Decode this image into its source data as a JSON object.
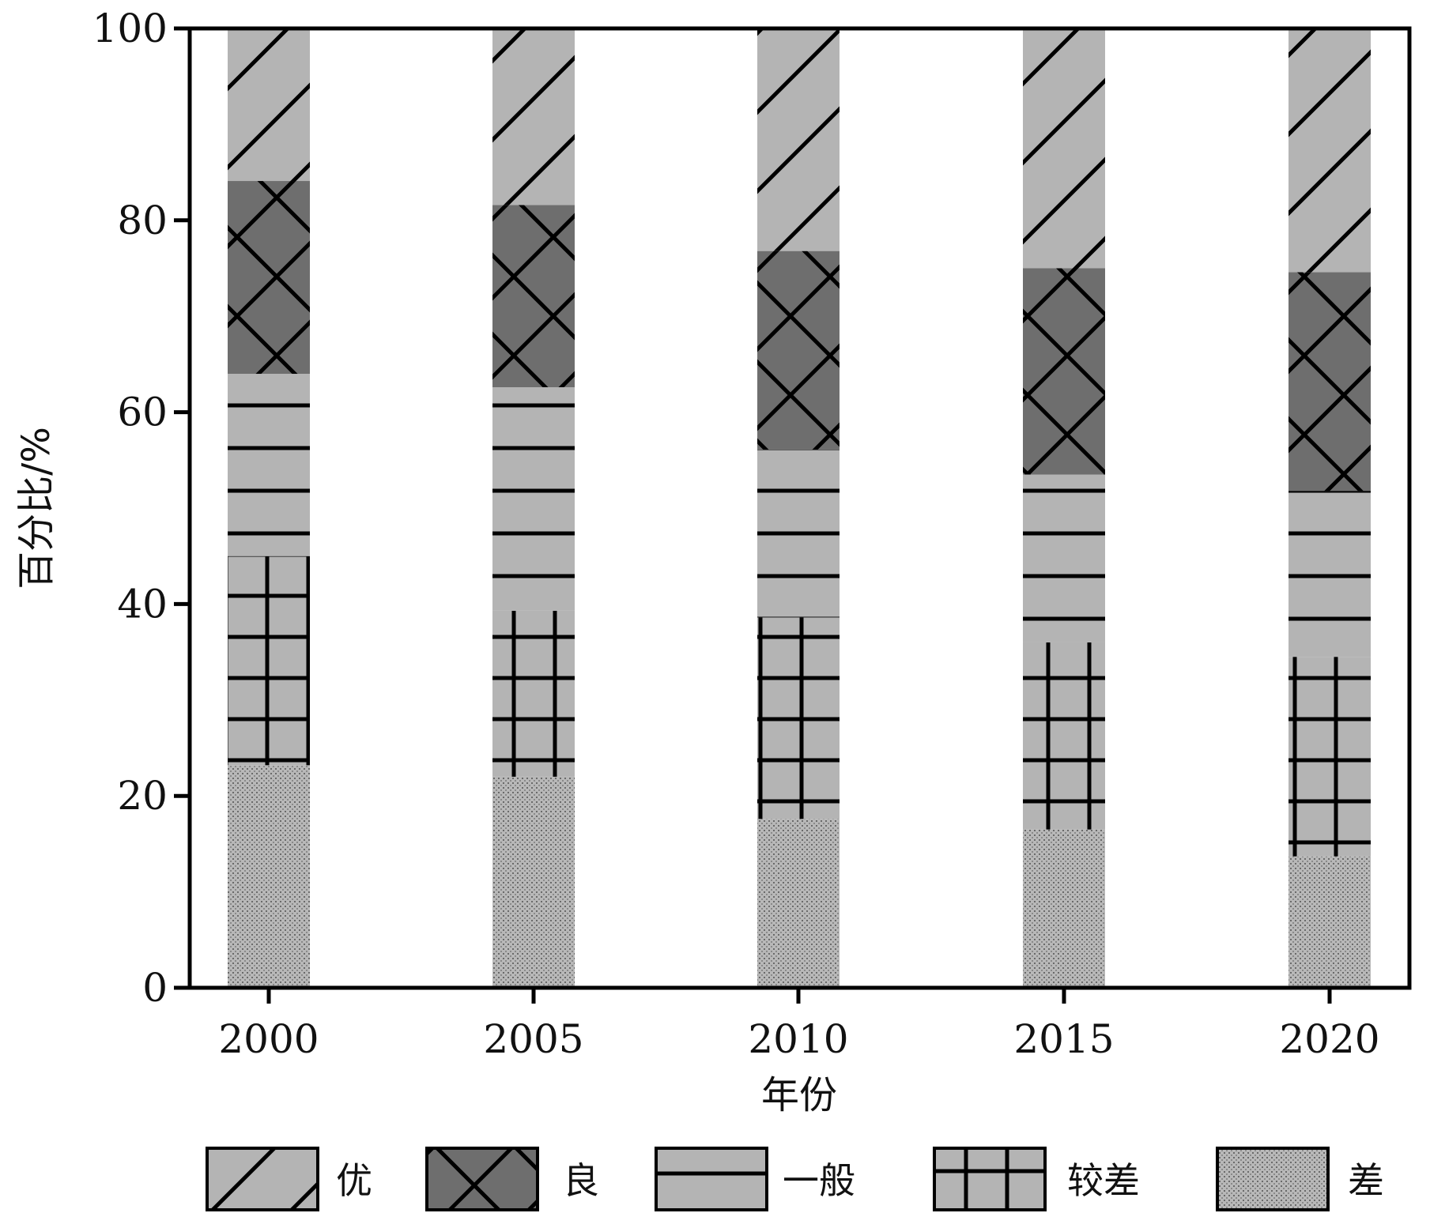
{
  "chart_data": {
    "type": "bar",
    "stacked": true,
    "categories": [
      "2000",
      "2005",
      "2010",
      "2015",
      "2020"
    ],
    "series": [
      {
        "name": "差",
        "values": [
          23.2,
          22.0,
          17.6,
          16.5,
          13.7
        ],
        "color": "#a9a9a9",
        "pattern": "dots"
      },
      {
        "name": "较差",
        "values": [
          21.8,
          17.3,
          21.0,
          19.5,
          20.8
        ],
        "color": "#b4b4b4",
        "pattern": "grid"
      },
      {
        "name": "一般",
        "values": [
          19.0,
          23.3,
          17.5,
          17.5,
          17.3
        ],
        "color": "#b4b4b4",
        "pattern": "horizontal"
      },
      {
        "name": "良",
        "values": [
          20.1,
          19.0,
          20.7,
          21.5,
          22.8
        ],
        "color": "#6e6e6e",
        "pattern": "crosshatch"
      },
      {
        "name": "优",
        "values": [
          15.9,
          18.4,
          23.2,
          25.0,
          25.4
        ],
        "color": "#b4b4b4",
        "pattern": "diagonal"
      }
    ],
    "xlabel": "年份",
    "ylabel": "百分比/%",
    "ylim": [
      0,
      100
    ],
    "yticks": [
      "0",
      "20",
      "40",
      "60",
      "80",
      "100"
    ],
    "grid": false,
    "legend_placement": "bottom",
    "legend_order": [
      "优",
      "良",
      "一般",
      "较差",
      "差"
    ]
  }
}
